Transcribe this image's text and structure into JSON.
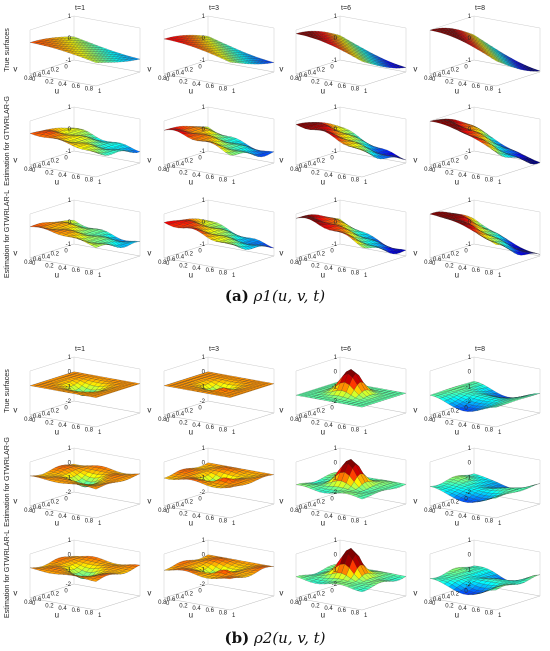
{
  "chart_data": [
    {
      "type": "surface3d",
      "panel": "(a)",
      "caption_label": "(a)",
      "caption_math": "ρ1(u, v, t)",
      "column_titles": [
        "t=1",
        "t=3",
        "t=6",
        "t=8"
      ],
      "row_labels": [
        "True surfaces",
        "Estimation for GTWRLAR-G",
        "Estimation for GTWRLAR-L"
      ],
      "u_ticks": [
        "0",
        "0.2",
        "0.4",
        "0.6",
        "0.8",
        "1"
      ],
      "v_ticks": [
        "0",
        "0.2",
        "0.4",
        "0.6",
        "0.8"
      ],
      "z_ticks": [
        "-1",
        "0",
        "1"
      ],
      "xlabel": "u",
      "ylabel": "v",
      "zlim": [
        -1,
        1
      ],
      "grid": true,
      "colormap": "jet"
    },
    {
      "type": "surface3d",
      "panel": "(b)",
      "caption_label": "(b)",
      "caption_math": "ρ2(u, v, t)",
      "column_titles": [
        "t=1",
        "t=3",
        "t=6",
        "t=8"
      ],
      "row_labels": [
        "True surfaces",
        "Estimation for GTWRLAR-G",
        "Estimation for GTWRLAR-L"
      ],
      "u_ticks": [
        "0",
        "0.2",
        "0.4",
        "0.6",
        "0.8",
        "1"
      ],
      "v_ticks": [
        "0",
        "0.2",
        "0.4",
        "0.6",
        "0.8"
      ],
      "z_ticks": [
        "-2",
        "-1",
        "0",
        "1"
      ],
      "xlabel": "u",
      "ylabel": "v",
      "zlim": [
        -2,
        1
      ],
      "grid": true,
      "colormap": "jet"
    }
  ],
  "colors": {
    "jet_low": "#00007f",
    "jet_high": "#7f0000",
    "axis": "#555555",
    "grid": "#cccccc"
  }
}
